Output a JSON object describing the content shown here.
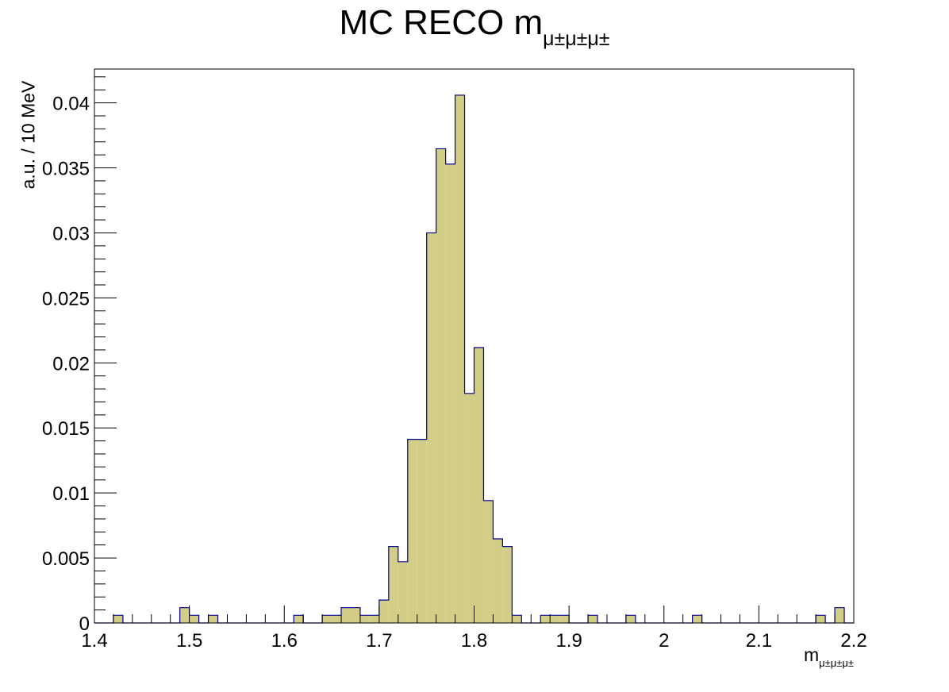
{
  "chart_data": {
    "type": "bar",
    "title_main": "MC RECO m",
    "title_sub": "μ±μ±μ±",
    "xlabel_main": "m",
    "xlabel_sub": "μ±μ±μ±",
    "ylabel": "a.u. / 10 MeV",
    "xlim": [
      1.4,
      2.2
    ],
    "ylim": [
      0,
      0.0426
    ],
    "bin_width": 0.01,
    "x_ticks": [
      "1.4",
      "1.5",
      "1.6",
      "1.7",
      "1.8",
      "1.9",
      "2",
      "2.1",
      "2.2"
    ],
    "y_ticks": [
      "0",
      "0.005",
      "0.01",
      "0.015",
      "0.02",
      "0.025",
      "0.03",
      "0.035",
      "0.04"
    ],
    "bin_low_edges": [
      1.4,
      1.41,
      1.42,
      1.43,
      1.44,
      1.45,
      1.46,
      1.47,
      1.48,
      1.49,
      1.5,
      1.51,
      1.52,
      1.53,
      1.54,
      1.55,
      1.56,
      1.57,
      1.58,
      1.59,
      1.6,
      1.61,
      1.62,
      1.63,
      1.64,
      1.65,
      1.66,
      1.67,
      1.68,
      1.69,
      1.7,
      1.71,
      1.72,
      1.73,
      1.74,
      1.75,
      1.76,
      1.77,
      1.78,
      1.79,
      1.8,
      1.81,
      1.82,
      1.83,
      1.84,
      1.85,
      1.86,
      1.87,
      1.88,
      1.89,
      1.9,
      1.91,
      1.92,
      1.93,
      1.94,
      1.95,
      1.96,
      1.97,
      1.98,
      1.99,
      2.0,
      2.01,
      2.02,
      2.03,
      2.04,
      2.05,
      2.06,
      2.07,
      2.08,
      2.09,
      2.1,
      2.11,
      2.12,
      2.13,
      2.14,
      2.15,
      2.16,
      2.17,
      2.18,
      2.19
    ],
    "values": [
      0,
      0,
      0.00059,
      0,
      0,
      0,
      0,
      0,
      0,
      0.00118,
      0.00059,
      0,
      0.00059,
      0,
      0,
      0,
      0,
      0,
      0,
      0,
      0,
      0.00059,
      0,
      0,
      0.00059,
      0.00059,
      0.00118,
      0.00118,
      0.00059,
      0.00059,
      0.00176,
      0.00588,
      0.00471,
      0.01412,
      0.01412,
      0.03,
      0.03647,
      0.03529,
      0.04059,
      0.01765,
      0.02118,
      0.00941,
      0.00647,
      0.00588,
      0.00059,
      0,
      0,
      0.00059,
      0.00059,
      0.00059,
      0,
      0,
      0.00059,
      0,
      0,
      0,
      0.00059,
      0,
      0,
      0,
      0,
      0,
      0,
      0.00059,
      0,
      0,
      0,
      0,
      0,
      0,
      0,
      0,
      0,
      0,
      0,
      0,
      0.00059,
      0,
      0.00118,
      0
    ],
    "fill_color": "#d3ce87",
    "line_color": "#000099",
    "grid": false,
    "legend": "none"
  }
}
